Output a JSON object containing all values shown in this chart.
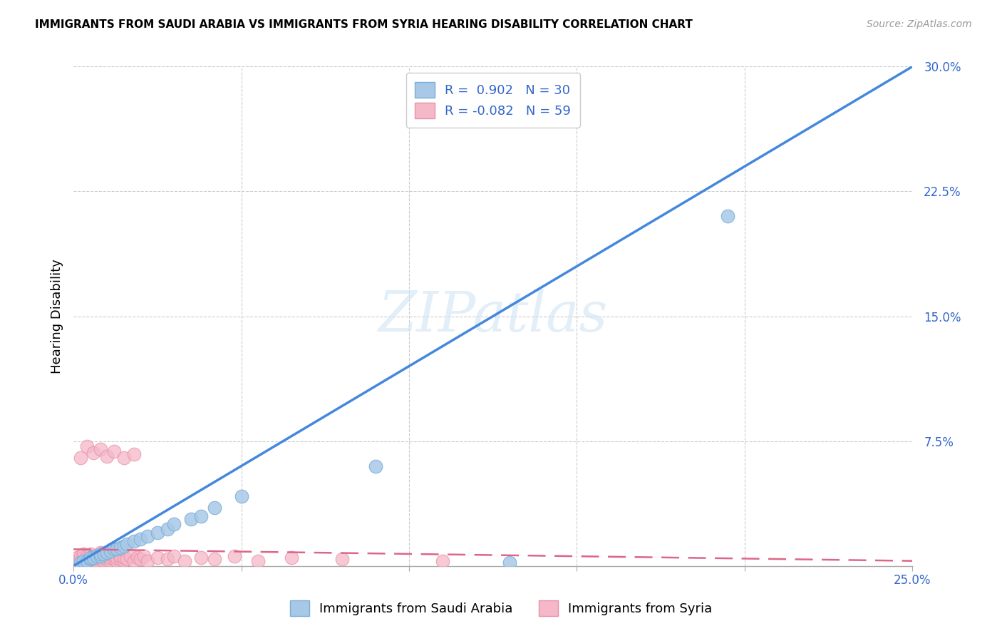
{
  "title": "IMMIGRANTS FROM SAUDI ARABIA VS IMMIGRANTS FROM SYRIA HEARING DISABILITY CORRELATION CHART",
  "source": "Source: ZipAtlas.com",
  "ylabel": "Hearing Disability",
  "xlim": [
    0.0,
    0.25
  ],
  "ylim": [
    0.0,
    0.3
  ],
  "xticks": [
    0.0,
    0.05,
    0.1,
    0.15,
    0.2,
    0.25
  ],
  "yticks": [
    0.0,
    0.075,
    0.15,
    0.225,
    0.3
  ],
  "saudi_color": "#a8c8e8",
  "saudi_edge_color": "#7aaed4",
  "syria_color": "#f4b8c8",
  "syria_edge_color": "#e890a8",
  "saudi_line_color": "#4488dd",
  "syria_line_color": "#dd6688",
  "watermark": "ZIPatlas",
  "legend_R_saudi": "0.902",
  "legend_N_saudi": "30",
  "legend_R_syria": "-0.082",
  "legend_N_syria": "59",
  "saudi_line_x0": 0.0,
  "saudi_line_y0": 0.0,
  "saudi_line_x1": 0.25,
  "saudi_line_y1": 0.3,
  "syria_line_x0": 0.0,
  "syria_line_y0": 0.01,
  "syria_line_x1": 0.25,
  "syria_line_y1": 0.003,
  "saudi_scatter_x": [
    0.002,
    0.003,
    0.004,
    0.005,
    0.005,
    0.006,
    0.007,
    0.008,
    0.008,
    0.009,
    0.01,
    0.011,
    0.012,
    0.013,
    0.014,
    0.015,
    0.016,
    0.018,
    0.02,
    0.022,
    0.025,
    0.028,
    0.03,
    0.035,
    0.038,
    0.042,
    0.05,
    0.09,
    0.13,
    0.195
  ],
  "saudi_scatter_y": [
    0.002,
    0.003,
    0.003,
    0.004,
    0.005,
    0.005,
    0.006,
    0.006,
    0.007,
    0.007,
    0.008,
    0.009,
    0.01,
    0.01,
    0.011,
    0.012,
    0.013,
    0.015,
    0.016,
    0.018,
    0.02,
    0.022,
    0.025,
    0.028,
    0.03,
    0.035,
    0.042,
    0.06,
    0.002,
    0.21
  ],
  "syria_scatter_x": [
    0.001,
    0.001,
    0.002,
    0.002,
    0.003,
    0.003,
    0.003,
    0.004,
    0.004,
    0.005,
    0.005,
    0.005,
    0.006,
    0.006,
    0.007,
    0.007,
    0.008,
    0.008,
    0.008,
    0.009,
    0.009,
    0.01,
    0.01,
    0.011,
    0.011,
    0.012,
    0.012,
    0.013,
    0.013,
    0.014,
    0.014,
    0.015,
    0.015,
    0.016,
    0.017,
    0.018,
    0.019,
    0.02,
    0.021,
    0.022,
    0.025,
    0.028,
    0.03,
    0.033,
    0.038,
    0.042,
    0.048,
    0.055,
    0.065,
    0.08,
    0.002,
    0.004,
    0.006,
    0.008,
    0.01,
    0.012,
    0.015,
    0.018,
    0.11
  ],
  "syria_scatter_y": [
    0.003,
    0.005,
    0.004,
    0.006,
    0.003,
    0.005,
    0.007,
    0.004,
    0.006,
    0.003,
    0.005,
    0.007,
    0.004,
    0.006,
    0.003,
    0.005,
    0.004,
    0.006,
    0.008,
    0.003,
    0.005,
    0.004,
    0.006,
    0.003,
    0.005,
    0.004,
    0.006,
    0.003,
    0.005,
    0.004,
    0.006,
    0.003,
    0.005,
    0.004,
    0.006,
    0.003,
    0.005,
    0.004,
    0.006,
    0.003,
    0.005,
    0.004,
    0.006,
    0.003,
    0.005,
    0.004,
    0.006,
    0.003,
    0.005,
    0.004,
    0.065,
    0.072,
    0.068,
    0.07,
    0.066,
    0.069,
    0.065,
    0.067,
    0.003
  ]
}
